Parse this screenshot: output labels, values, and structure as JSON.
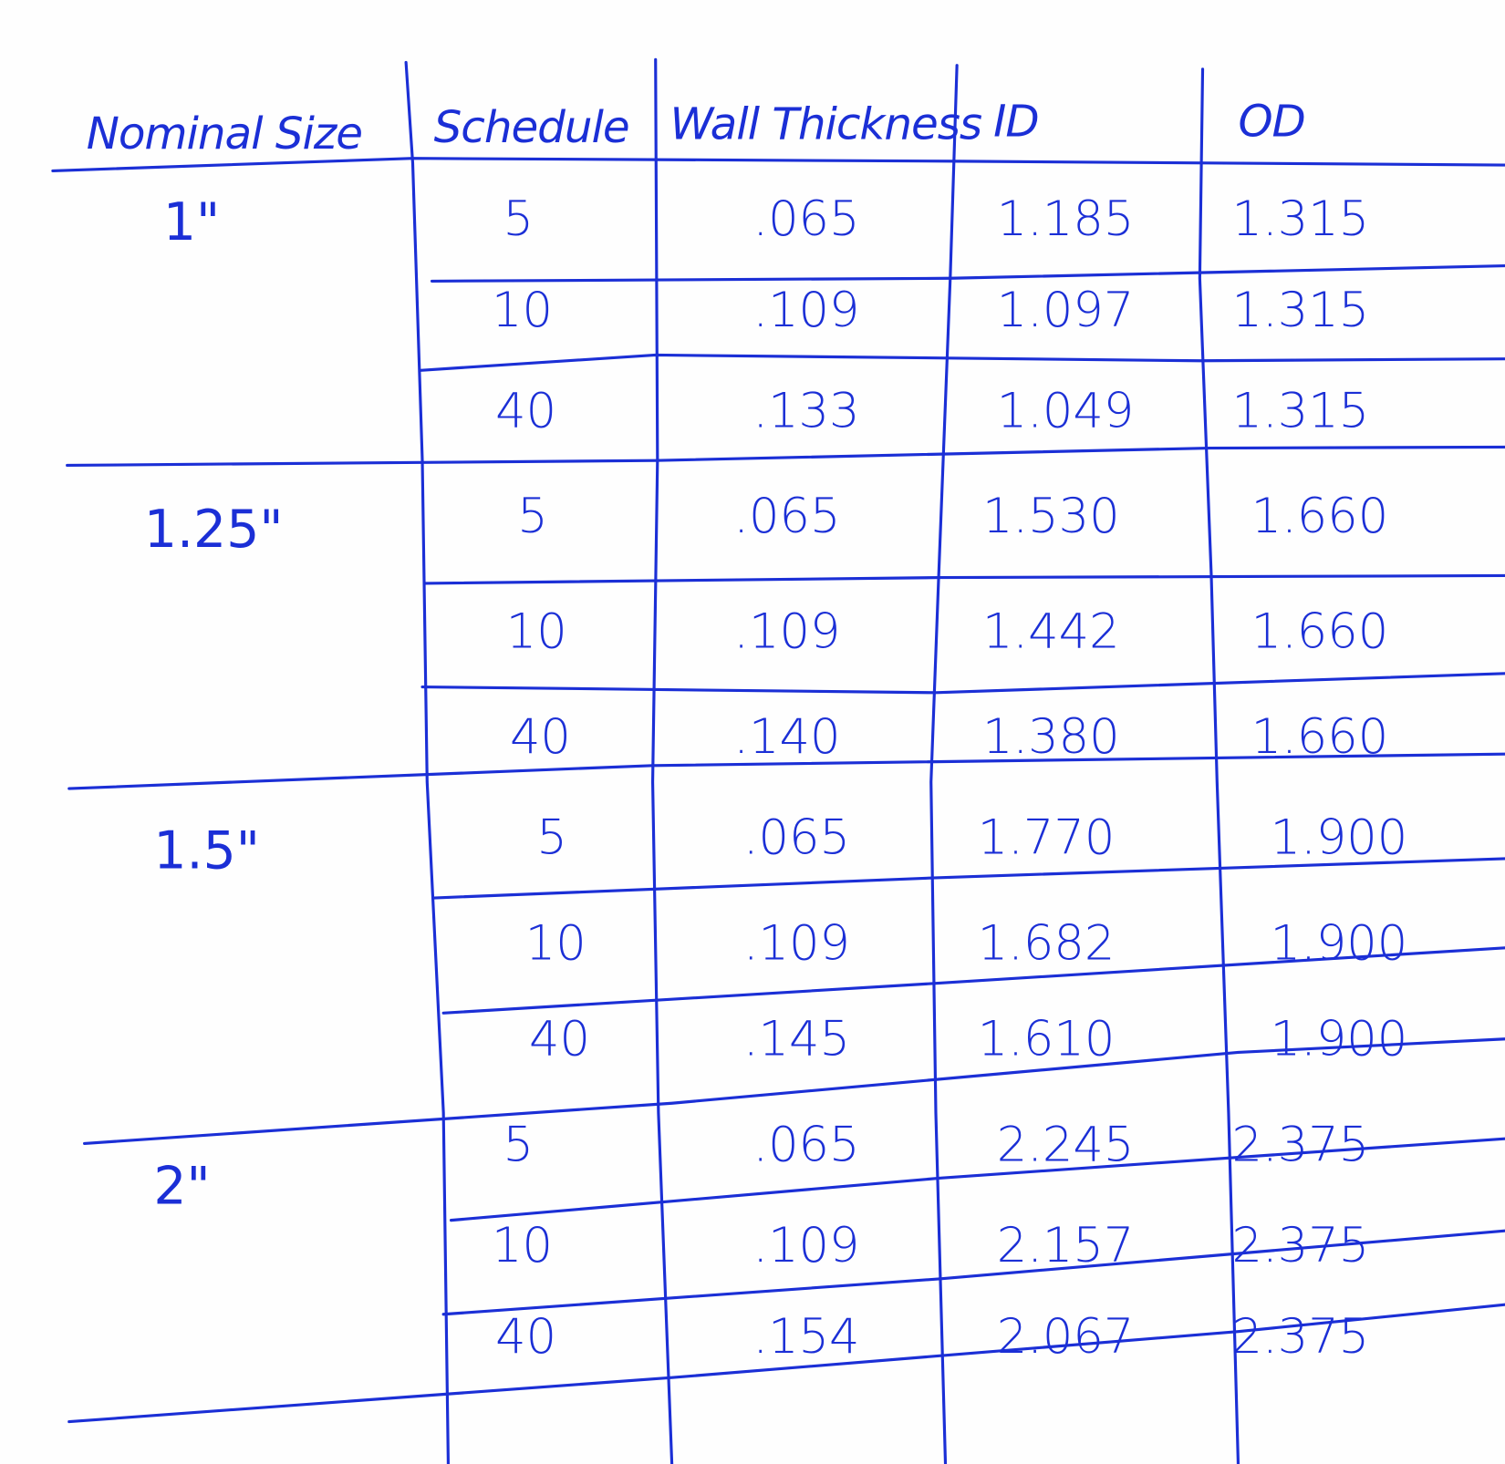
{
  "ink_color": "#1b2fd6",
  "headers": [
    "Nominal Size",
    "Schedule",
    "Wall Thickness",
    "ID",
    "OD"
  ],
  "groups": [
    {
      "nominal": "1\"",
      "rows": [
        {
          "schedule": "5",
          "wall": ".065",
          "id": "1.185",
          "od": "1.315"
        },
        {
          "schedule": "10",
          "wall": ".109",
          "id": "1.097",
          "od": "1.315"
        },
        {
          "schedule": "40",
          "wall": ".133",
          "id": "1.049",
          "od": "1.315"
        }
      ]
    },
    {
      "nominal": "1.25\"",
      "rows": [
        {
          "schedule": "5",
          "wall": ".065",
          "id": "1.530",
          "od": "1.660"
        },
        {
          "schedule": "10",
          "wall": ".109",
          "id": "1.442",
          "od": "1.660"
        },
        {
          "schedule": "40",
          "wall": ".140",
          "id": "1.380",
          "od": "1.660"
        }
      ]
    },
    {
      "nominal": "1.5\"",
      "rows": [
        {
          "schedule": "5",
          "wall": ".065",
          "id": "1.770",
          "od": "1.900"
        },
        {
          "schedule": "10",
          "wall": ".109",
          "id": "1.682",
          "od": "1.900"
        },
        {
          "schedule": "40",
          "wall": ".145",
          "id": "1.610",
          "od": "1.900"
        }
      ]
    },
    {
      "nominal": "2\"",
      "rows": [
        {
          "schedule": "5",
          "wall": ".065",
          "id": "2.245",
          "od": "2.375"
        },
        {
          "schedule": "10",
          "wall": ".109",
          "id": "2.157",
          "od": "2.375"
        },
        {
          "schedule": "40",
          "wall": ".154",
          "id": "2.067",
          "od": "2.375"
        }
      ]
    }
  ]
}
